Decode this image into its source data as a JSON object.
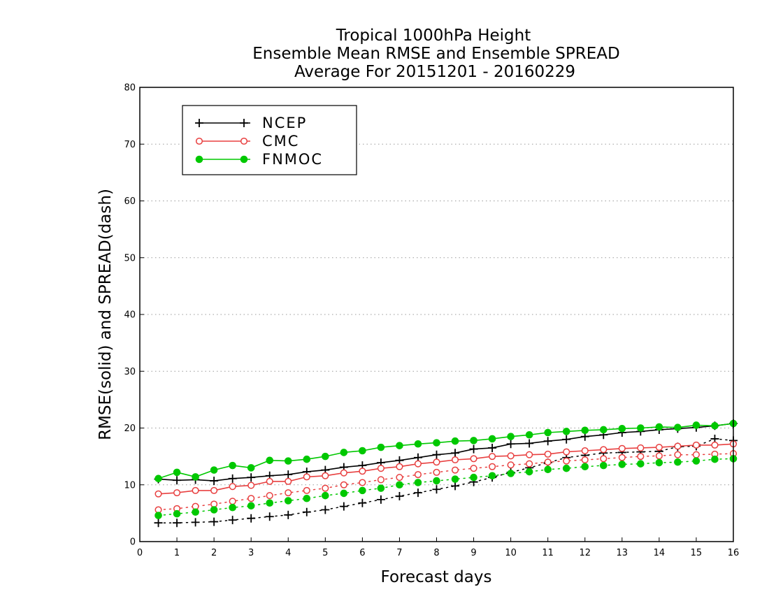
{
  "chart_data": {
    "type": "line",
    "title": [
      "Tropical 1000hPa Height",
      "Ensemble Mean RMSE and Ensemble SPREAD",
      "Average For 20151201 - 20160229"
    ],
    "xlabel": "Forecast days",
    "ylabel": "RMSE(solid) and SPREAD(dash)",
    "xlim": [
      0,
      16
    ],
    "ylim": [
      0,
      80
    ],
    "xticks": [
      0,
      1,
      2,
      3,
      4,
      5,
      6,
      7,
      8,
      9,
      10,
      11,
      12,
      13,
      14,
      15,
      16
    ],
    "yticks": [
      0,
      10,
      20,
      30,
      40,
      50,
      60,
      70,
      80
    ],
    "grid": "horizontal dotted",
    "legend_position": "top-left",
    "x": [
      0.5,
      1,
      1.5,
      2,
      2.5,
      3,
      3.5,
      4,
      4.5,
      5,
      5.5,
      6,
      6.5,
      7,
      7.5,
      8,
      8.5,
      9,
      9.5,
      10,
      10.5,
      11,
      11.5,
      12,
      12.5,
      13,
      13.5,
      14,
      14.5,
      15,
      15.5,
      16
    ],
    "series": [
      {
        "name": "NCEP",
        "color": "#000000",
        "marker": "plus",
        "rmse": [
          11.0,
          10.8,
          10.9,
          10.7,
          11.1,
          11.3,
          11.6,
          11.8,
          12.3,
          12.6,
          13.1,
          13.4,
          13.9,
          14.3,
          14.8,
          15.3,
          15.6,
          16.3,
          16.5,
          17.2,
          17.3,
          17.7,
          18.0,
          18.5,
          18.8,
          19.2,
          19.4,
          19.7,
          19.9,
          20.1,
          20.4,
          20.8
        ],
        "spread": [
          3.3,
          3.3,
          3.4,
          3.5,
          3.8,
          4.1,
          4.4,
          4.7,
          5.2,
          5.6,
          6.2,
          6.8,
          7.4,
          8.0,
          8.6,
          9.2,
          9.8,
          10.5,
          11.3,
          12.2,
          13.0,
          13.9,
          14.8,
          15.2,
          15.6,
          15.7,
          15.8,
          15.9,
          16.7,
          16.8,
          18.1,
          17.8
        ]
      },
      {
        "name": "CMC",
        "color": "#e84040",
        "marker": "open-circle",
        "rmse": [
          8.4,
          8.6,
          9.0,
          9.0,
          9.7,
          9.9,
          10.6,
          10.6,
          11.4,
          11.6,
          12.1,
          12.4,
          12.9,
          13.2,
          13.7,
          14.0,
          14.4,
          14.6,
          15.0,
          15.1,
          15.3,
          15.4,
          15.8,
          16.0,
          16.2,
          16.4,
          16.5,
          16.6,
          16.8,
          17.0,
          17.0,
          17.2
        ],
        "spread": [
          5.6,
          5.8,
          6.2,
          6.6,
          7.1,
          7.6,
          8.1,
          8.6,
          9.0,
          9.4,
          10.0,
          10.4,
          10.9,
          11.3,
          11.8,
          12.2,
          12.6,
          12.9,
          13.2,
          13.5,
          13.7,
          14.0,
          14.2,
          14.4,
          14.6,
          14.8,
          15.0,
          15.1,
          15.3,
          15.3,
          15.4,
          15.5
        ]
      },
      {
        "name": "FNMOC",
        "color": "#00c800",
        "marker": "filled-circle",
        "rmse": [
          11.1,
          12.2,
          11.4,
          12.6,
          13.4,
          13.0,
          14.3,
          14.2,
          14.5,
          15.0,
          15.7,
          16.0,
          16.6,
          16.9,
          17.2,
          17.4,
          17.7,
          17.8,
          18.1,
          18.5,
          18.8,
          19.2,
          19.4,
          19.6,
          19.7,
          19.9,
          20.0,
          20.2,
          20.1,
          20.5,
          20.4,
          20.8
        ],
        "spread": [
          4.6,
          4.9,
          5.2,
          5.6,
          6.0,
          6.3,
          6.8,
          7.2,
          7.6,
          8.1,
          8.5,
          9.0,
          9.4,
          10.0,
          10.4,
          10.7,
          11.0,
          11.3,
          11.6,
          12.0,
          12.3,
          12.7,
          12.9,
          13.2,
          13.4,
          13.6,
          13.7,
          13.9,
          14.0,
          14.2,
          14.5,
          14.6
        ]
      }
    ]
  }
}
